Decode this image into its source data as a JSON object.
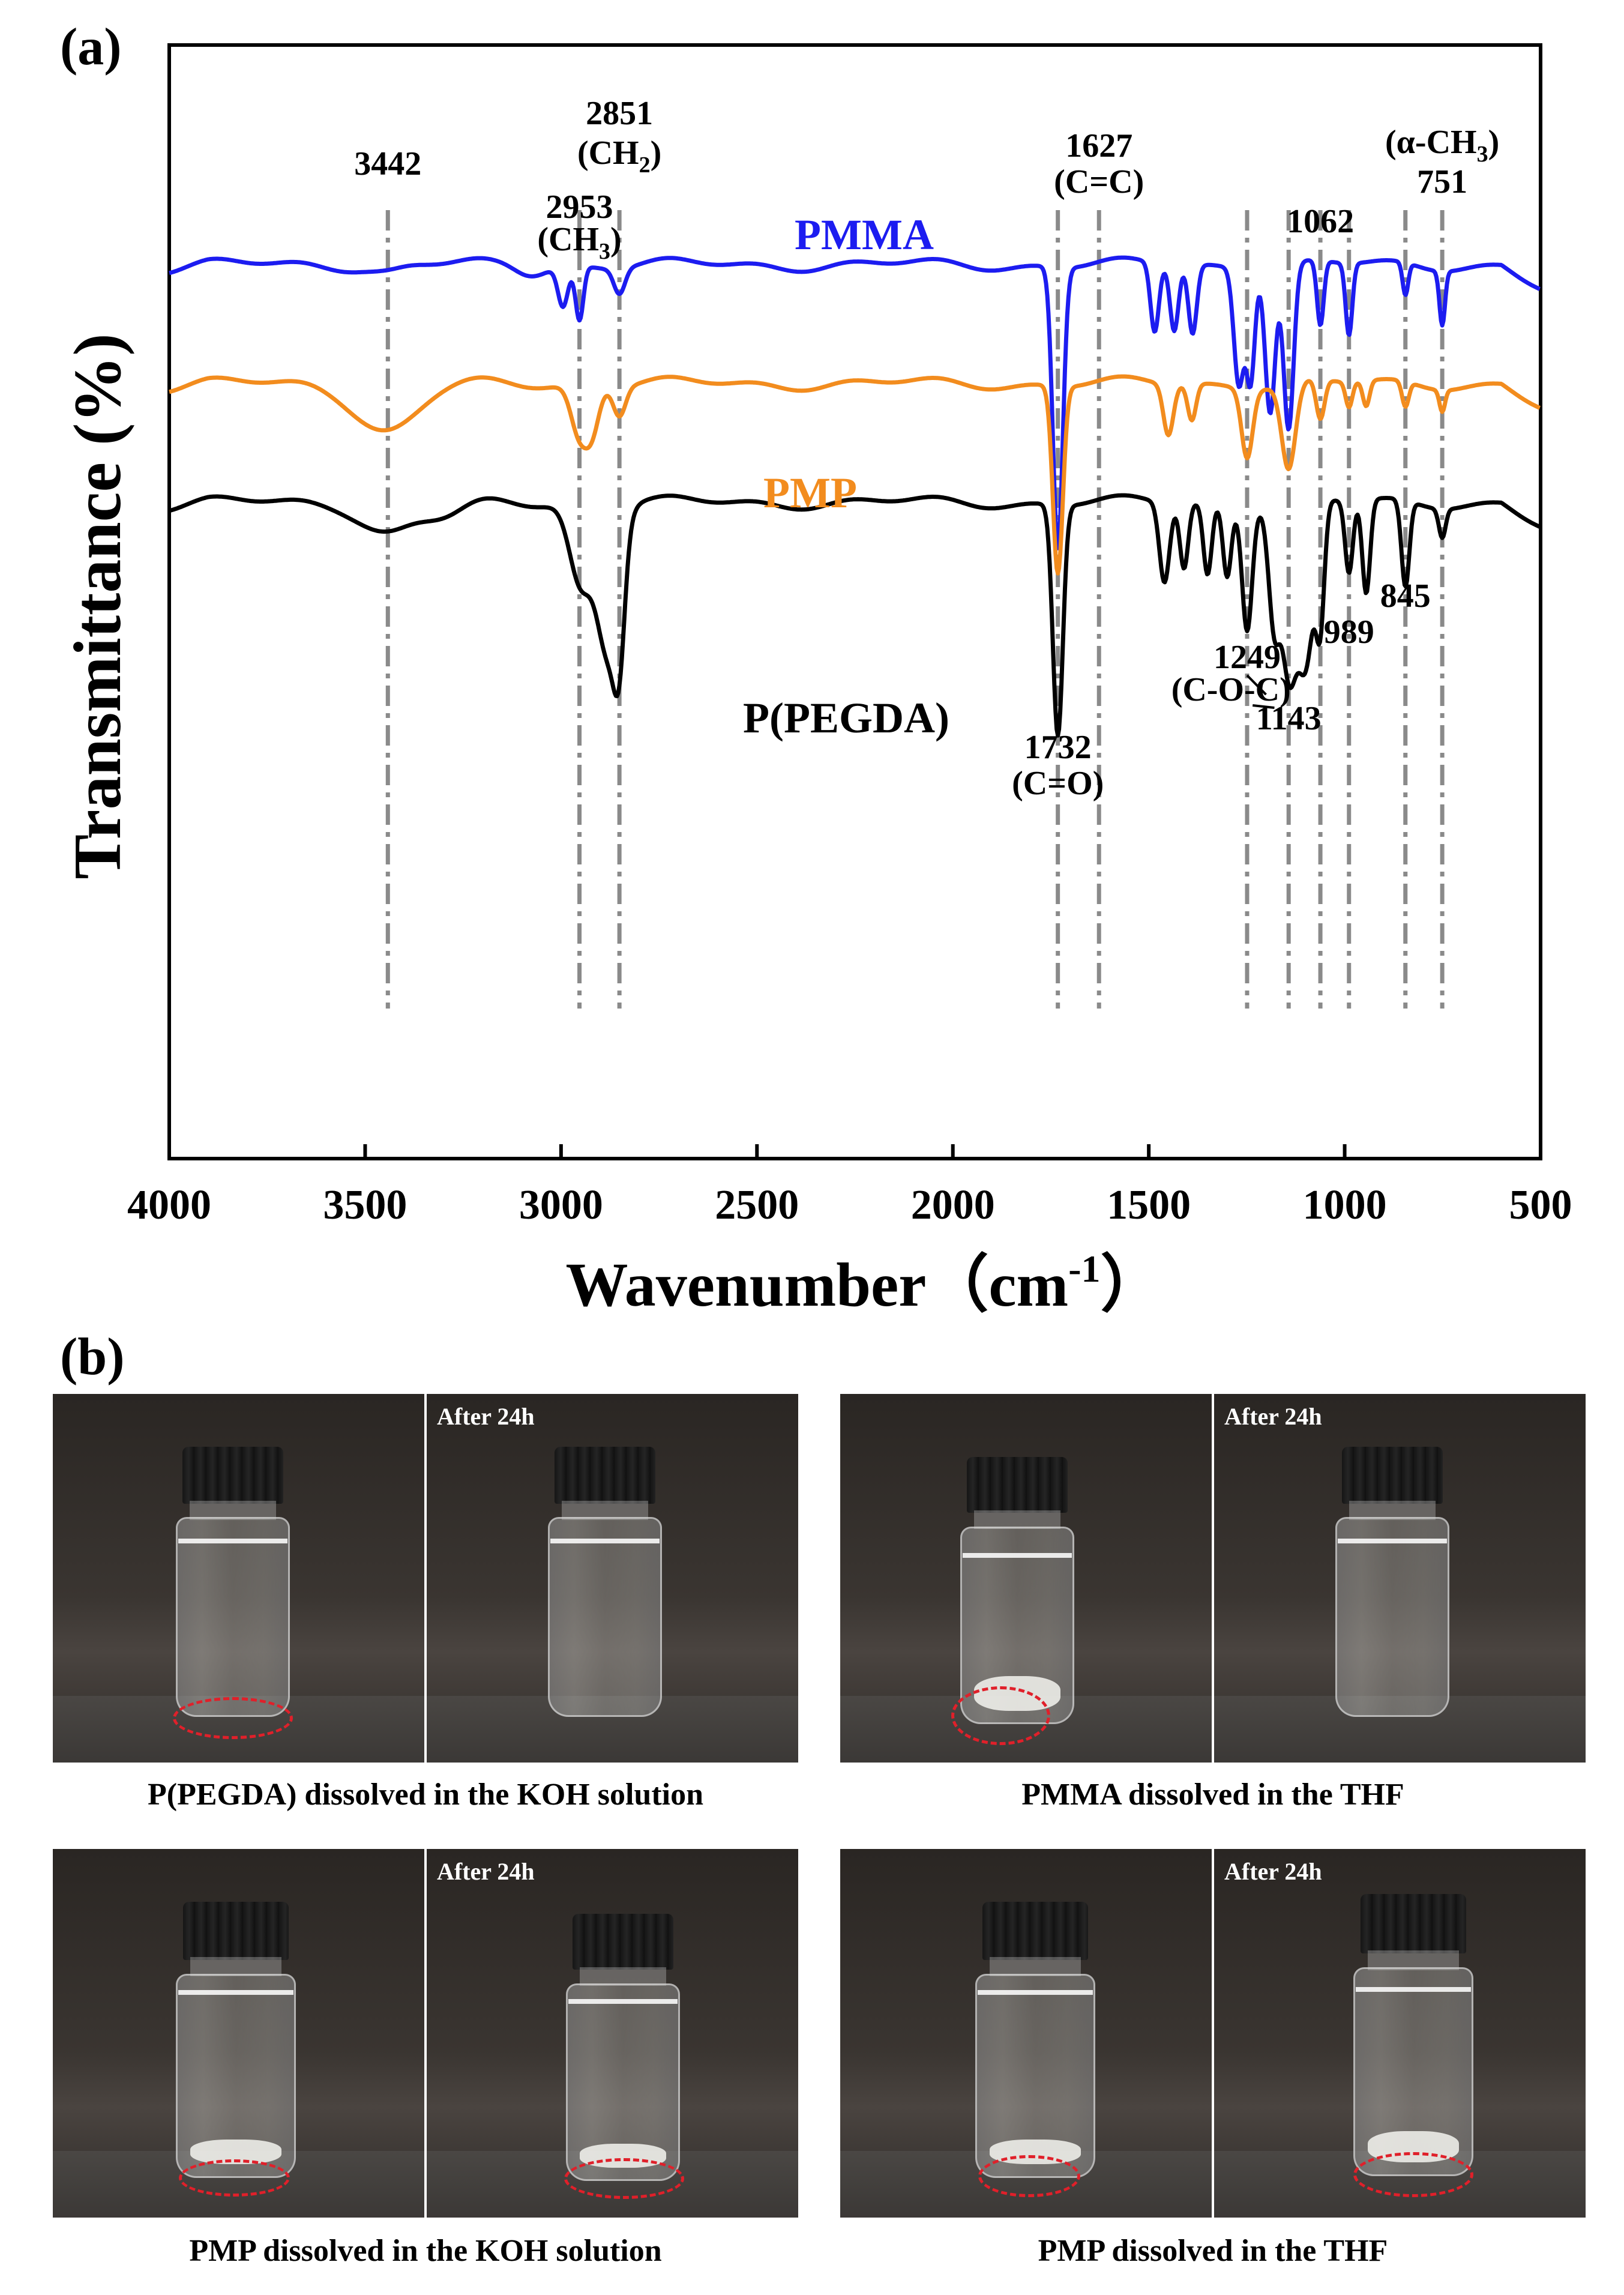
{
  "panel_labels": {
    "a": "(a)",
    "b": "(b)"
  },
  "chart_data": {
    "type": "line",
    "xlabel": "Wavenumber（cm",
    "xlabel_sup": "-1",
    "xlabel_tail": "）",
    "ylabel": "Transmittance (%)",
    "xlim": [
      4000,
      500
    ],
    "xticks": [
      4000,
      3500,
      3000,
      2500,
      2000,
      1500,
      1000,
      500
    ],
    "colors": {
      "PMMA": "#1c1cf0",
      "PMP": "#f28c1e",
      "P(PEGDA)": "#000000",
      "guide": "#8a8a8a"
    },
    "series": [
      {
        "name": "PMMA",
        "baseline": 0.8,
        "dips": [
          [
            3442,
            0.08,
            60
          ],
          [
            3080,
            0.1,
            50
          ],
          [
            2995,
            0.55,
            18
          ],
          [
            2953,
            0.75,
            14
          ],
          [
            2851,
            0.35,
            20
          ],
          [
            1732,
            3.9,
            18
          ],
          [
            1485,
            0.95,
            15
          ],
          [
            1435,
            0.9,
            15
          ],
          [
            1388,
            0.95,
            15
          ],
          [
            1270,
            1.6,
            18
          ],
          [
            1240,
            1.5,
            15
          ],
          [
            1190,
            2.0,
            18
          ],
          [
            1143,
            2.3,
            18
          ],
          [
            1062,
            0.9,
            12
          ],
          [
            989,
            1.0,
            12
          ],
          [
            845,
            0.45,
            10
          ],
          [
            751,
            0.75,
            10
          ]
        ]
      },
      {
        "name": "PMP",
        "baseline": 2.45,
        "dips": [
          [
            3442,
            0.65,
            110
          ],
          [
            2953,
            0.7,
            30
          ],
          [
            2920,
            0.55,
            25
          ],
          [
            2851,
            0.4,
            22
          ],
          [
            1732,
            2.6,
            18
          ],
          [
            1450,
            0.7,
            18
          ],
          [
            1390,
            0.5,
            15
          ],
          [
            1249,
            0.95,
            20
          ],
          [
            1143,
            1.2,
            25
          ],
          [
            1062,
            0.55,
            15
          ],
          [
            989,
            0.35,
            12
          ],
          [
            945,
            0.35,
            12
          ],
          [
            845,
            0.35,
            12
          ],
          [
            751,
            0.3,
            10
          ]
        ]
      },
      {
        "name": "P(PEGDA)",
        "baseline": 4.1,
        "dips": [
          [
            3442,
            0.4,
            90
          ],
          [
            3300,
            0.2,
            80
          ],
          [
            2950,
            1.1,
            40
          ],
          [
            2880,
            2.0,
            40
          ],
          [
            2851,
            1.3,
            20
          ],
          [
            1732,
            3.2,
            18
          ],
          [
            1460,
            1.1,
            18
          ],
          [
            1410,
            0.9,
            15
          ],
          [
            1350,
            1.0,
            15
          ],
          [
            1300,
            1.0,
            15
          ],
          [
            1249,
            1.7,
            18
          ],
          [
            1180,
            1.6,
            20
          ],
          [
            1143,
            2.2,
            25
          ],
          [
            1100,
            2.3,
            30
          ],
          [
            1062,
            1.5,
            15
          ],
          [
            989,
            1.0,
            14
          ],
          [
            945,
            1.3,
            14
          ],
          [
            845,
            1.2,
            14
          ],
          [
            751,
            0.4,
            12
          ]
        ]
      }
    ],
    "guide_lines": [
      3442,
      2953,
      2851,
      1732,
      1627,
      1249,
      1143,
      1062,
      989,
      845,
      751
    ],
    "annotations": [
      {
        "text": "3442",
        "x": 3442,
        "y": -0.45
      },
      {
        "text": "2953",
        "x": 2953,
        "y": 0.15
      },
      {
        "text": "(CH",
        "sub": "3",
        "tail": ")",
        "x": 2953,
        "y": 0.6
      },
      {
        "text": "2851",
        "x": 2851,
        "y": -1.15
      },
      {
        "text": "(CH",
        "sub": "2",
        "tail": ")",
        "x": 2851,
        "y": -0.6
      },
      {
        "text": "1627",
        "x": 1627,
        "y": -0.7
      },
      {
        "text": "(C=C)",
        "x": 1627,
        "y": -0.2
      },
      {
        "text": "1062",
        "x": 1062,
        "y": 0.35
      },
      {
        "text": "(α-CH",
        "sub": "3",
        "tail": ")",
        "x": 751,
        "y": -0.75
      },
      {
        "text": "751",
        "x": 751,
        "y": -0.2
      },
      {
        "text": "845",
        "x": 845,
        "y": 5.55
      },
      {
        "text": "989",
        "x": 989,
        "y": 6.05
      },
      {
        "text": "1249",
        "x": 1249,
        "y": 6.4
      },
      {
        "text": "(C-O-C)",
        "x": 1290,
        "y": 6.85
      },
      {
        "text": "1143",
        "x": 1143,
        "y": 7.25
      },
      {
        "text": "1732",
        "x": 1732,
        "y": 7.65
      },
      {
        "text": "(C=O)",
        "x": 1732,
        "y": 8.15
      }
    ]
  },
  "panel_b": {
    "after_label": "After 24h",
    "captions": [
      "P(PEGDA) dissolved in the KOH solution",
      "PMMA dissolved in the THF",
      "PMP dissolved in the KOH solution",
      "PMP dissolved in the THF"
    ]
  }
}
